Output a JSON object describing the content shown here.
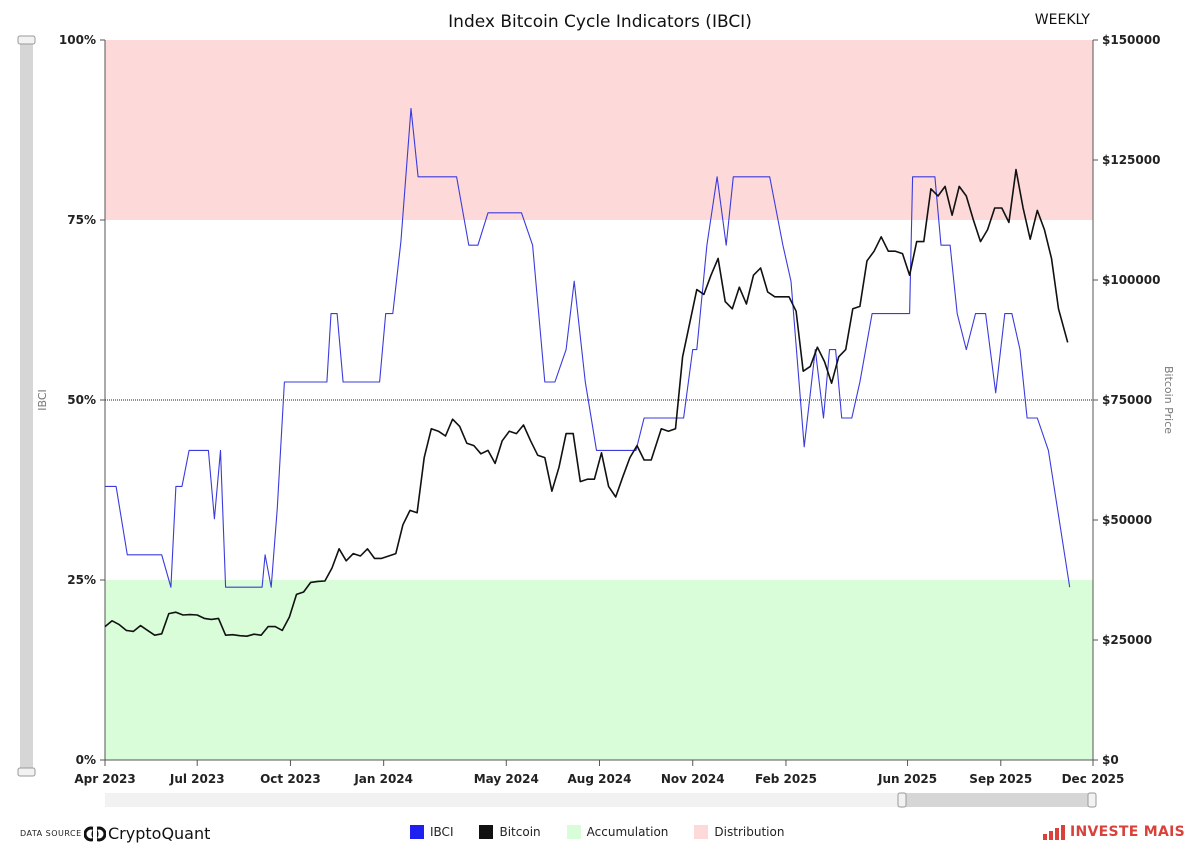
{
  "chart_data": {
    "type": "line",
    "title": "Index Bitcoin Cycle Indicators (IBCI)",
    "frequency_label": "WEEKLY",
    "y_left_label": "IBCI",
    "y_right_label": "Bitcoin Price",
    "y_left_ticks": [
      "0%",
      "25%",
      "50%",
      "75%",
      "100%"
    ],
    "y_left_range": [
      0,
      100
    ],
    "y_right_ticks": [
      "$0",
      "$25000",
      "$50000",
      "$75000",
      "$100000",
      "$125000",
      "$150000"
    ],
    "y_right_range": [
      0,
      150000
    ],
    "x_range": [
      "2023-04-01",
      "2025-12-01"
    ],
    "x_ticks": [
      {
        "date": "2023-04-01",
        "label": "Apr 2023"
      },
      {
        "date": "2023-07-01",
        "label": "Jul 2023"
      },
      {
        "date": "2023-10-01",
        "label": "Oct 2023"
      },
      {
        "date": "2024-01-01",
        "label": "Jan 2024"
      },
      {
        "date": "2024-05-01",
        "label": "May 2024"
      },
      {
        "date": "2024-08-01",
        "label": "Aug 2024"
      },
      {
        "date": "2024-11-01",
        "label": "Nov 2024"
      },
      {
        "date": "2025-02-01",
        "label": "Feb 2025"
      },
      {
        "date": "2025-06-01",
        "label": "Jun 2025"
      },
      {
        "date": "2025-09-01",
        "label": "Sep 2025"
      },
      {
        "date": "2025-12-01",
        "label": "Dec 2025"
      }
    ],
    "zones": [
      {
        "name": "Distribution",
        "from": 75,
        "to": 100,
        "color": "#fdd9d9"
      },
      {
        "name": "Accumulation",
        "from": 0,
        "to": 25,
        "color": "#d9fcd9"
      }
    ],
    "midline": 50,
    "series": [
      {
        "name": "IBCI",
        "color": "#3b3bdd",
        "axis": "left",
        "points": [
          [
            "2023-04-01",
            38
          ],
          [
            "2023-04-12",
            38
          ],
          [
            "2023-04-23",
            28.5
          ],
          [
            "2023-05-06",
            28.5
          ],
          [
            "2023-05-27",
            28.5
          ],
          [
            "2023-06-05",
            24
          ],
          [
            "2023-06-10",
            38
          ],
          [
            "2023-06-16",
            38
          ],
          [
            "2023-06-23",
            43
          ],
          [
            "2023-07-02",
            43
          ],
          [
            "2023-07-12",
            43
          ],
          [
            "2023-07-18",
            33.5
          ],
          [
            "2023-07-24",
            43
          ],
          [
            "2023-07-29",
            24
          ],
          [
            "2023-08-05",
            24
          ],
          [
            "2023-08-20",
            24
          ],
          [
            "2023-09-03",
            24
          ],
          [
            "2023-09-06",
            28.5
          ],
          [
            "2023-09-12",
            24
          ],
          [
            "2023-09-18",
            35
          ],
          [
            "2023-09-25",
            52.5
          ],
          [
            "2023-10-01",
            52.5
          ],
          [
            "2023-10-20",
            52.5
          ],
          [
            "2023-11-06",
            52.5
          ],
          [
            "2023-11-10",
            62
          ],
          [
            "2023-11-16",
            62
          ],
          [
            "2023-11-22",
            52.5
          ],
          [
            "2023-12-10",
            52.5
          ],
          [
            "2023-12-28",
            52.5
          ],
          [
            "2024-01-03",
            62
          ],
          [
            "2024-01-10",
            62
          ],
          [
            "2024-01-18",
            72
          ],
          [
            "2024-01-28",
            90.5
          ],
          [
            "2024-02-04",
            81
          ],
          [
            "2024-02-20",
            81
          ],
          [
            "2024-03-13",
            81
          ],
          [
            "2024-03-25",
            71.5
          ],
          [
            "2024-04-03",
            71.5
          ],
          [
            "2024-04-13",
            76
          ],
          [
            "2024-05-04",
            76
          ],
          [
            "2024-05-16",
            76
          ],
          [
            "2024-05-27",
            71.5
          ],
          [
            "2024-06-08",
            52.5
          ],
          [
            "2024-06-18",
            52.5
          ],
          [
            "2024-06-29",
            57
          ],
          [
            "2024-07-07",
            66.5
          ],
          [
            "2024-07-18",
            52.5
          ],
          [
            "2024-07-29",
            43
          ],
          [
            "2024-08-12",
            43
          ],
          [
            "2024-08-24",
            43
          ],
          [
            "2024-09-06",
            43
          ],
          [
            "2024-09-14",
            47.5
          ],
          [
            "2024-10-06",
            47.5
          ],
          [
            "2024-10-23",
            47.5
          ],
          [
            "2024-11-01",
            57
          ],
          [
            "2024-11-05",
            57
          ],
          [
            "2024-11-15",
            71.5
          ],
          [
            "2024-11-25",
            81
          ],
          [
            "2024-12-04",
            71.5
          ],
          [
            "2024-12-11",
            81
          ],
          [
            "2024-12-25",
            81
          ],
          [
            "2025-01-16",
            81
          ],
          [
            "2025-01-29",
            71.5
          ],
          [
            "2025-02-06",
            66.5
          ],
          [
            "2025-02-19",
            43.5
          ],
          [
            "2025-03-02",
            57
          ],
          [
            "2025-03-10",
            47.5
          ],
          [
            "2025-03-16",
            57
          ],
          [
            "2025-03-22",
            57
          ],
          [
            "2025-03-28",
            47.5
          ],
          [
            "2025-04-07",
            47.5
          ],
          [
            "2025-04-15",
            52.5
          ],
          [
            "2025-04-27",
            62
          ],
          [
            "2025-05-06",
            62
          ],
          [
            "2025-05-27",
            62
          ],
          [
            "2025-06-03",
            62
          ],
          [
            "2025-06-06",
            81
          ],
          [
            "2025-06-15",
            81
          ],
          [
            "2025-06-28",
            81
          ],
          [
            "2025-07-04",
            71.5
          ],
          [
            "2025-07-13",
            71.5
          ],
          [
            "2025-07-20",
            62
          ],
          [
            "2025-07-29",
            57
          ],
          [
            "2025-08-07",
            62
          ],
          [
            "2025-08-17",
            62
          ],
          [
            "2025-08-27",
            51
          ],
          [
            "2025-09-05",
            62
          ],
          [
            "2025-09-12",
            62
          ],
          [
            "2025-09-20",
            57
          ],
          [
            "2025-09-27",
            47.5
          ],
          [
            "2025-10-07",
            47.5
          ],
          [
            "2025-10-18",
            43
          ],
          [
            "2025-11-08",
            24
          ]
        ]
      },
      {
        "name": "Bitcoin",
        "color": "#111111",
        "axis": "right",
        "points": [
          [
            "2023-04-01",
            27800
          ],
          [
            "2023-04-08",
            29000
          ],
          [
            "2023-04-15",
            28200
          ],
          [
            "2023-04-22",
            27000
          ],
          [
            "2023-04-29",
            26800
          ],
          [
            "2023-05-06",
            28000
          ],
          [
            "2023-05-13",
            27000
          ],
          [
            "2023-05-20",
            26000
          ],
          [
            "2023-05-27",
            26300
          ],
          [
            "2023-06-03",
            30500
          ],
          [
            "2023-06-10",
            30800
          ],
          [
            "2023-06-17",
            30200
          ],
          [
            "2023-06-24",
            30300
          ],
          [
            "2023-07-01",
            30200
          ],
          [
            "2023-07-08",
            29500
          ],
          [
            "2023-07-15",
            29300
          ],
          [
            "2023-07-22",
            29500
          ],
          [
            "2023-07-29",
            26000
          ],
          [
            "2023-08-05",
            26100
          ],
          [
            "2023-08-12",
            25900
          ],
          [
            "2023-08-19",
            25800
          ],
          [
            "2023-08-26",
            26200
          ],
          [
            "2023-09-02",
            26000
          ],
          [
            "2023-09-09",
            27800
          ],
          [
            "2023-09-16",
            27800
          ],
          [
            "2023-09-23",
            27000
          ],
          [
            "2023-09-30",
            29800
          ],
          [
            "2023-10-07",
            34500
          ],
          [
            "2023-10-14",
            35000
          ],
          [
            "2023-10-21",
            37000
          ],
          [
            "2023-10-28",
            37200
          ],
          [
            "2023-11-04",
            37300
          ],
          [
            "2023-11-11",
            40000
          ],
          [
            "2023-11-18",
            44000
          ],
          [
            "2023-11-25",
            41500
          ],
          [
            "2023-12-02",
            43000
          ],
          [
            "2023-12-09",
            42500
          ],
          [
            "2023-12-16",
            44000
          ],
          [
            "2023-12-23",
            42000
          ],
          [
            "2023-12-30",
            42000
          ],
          [
            "2024-01-06",
            42500
          ],
          [
            "2024-01-13",
            43000
          ],
          [
            "2024-01-20",
            49000
          ],
          [
            "2024-01-27",
            52000
          ],
          [
            "2024-02-03",
            51500
          ],
          [
            "2024-02-10",
            63000
          ],
          [
            "2024-02-17",
            69000
          ],
          [
            "2024-02-24",
            68500
          ],
          [
            "2024-03-02",
            67500
          ],
          [
            "2024-03-09",
            71000
          ],
          [
            "2024-03-16",
            69500
          ],
          [
            "2024-03-23",
            66000
          ],
          [
            "2024-03-30",
            65500
          ],
          [
            "2024-04-06",
            63800
          ],
          [
            "2024-04-13",
            64500
          ],
          [
            "2024-04-20",
            61800
          ],
          [
            "2024-04-27",
            66500
          ],
          [
            "2024-05-04",
            68500
          ],
          [
            "2024-05-11",
            68000
          ],
          [
            "2024-05-18",
            69800
          ],
          [
            "2024-05-25",
            66500
          ],
          [
            "2024-06-01",
            63500
          ],
          [
            "2024-06-08",
            63000
          ],
          [
            "2024-06-15",
            56000
          ],
          [
            "2024-06-22",
            61000
          ],
          [
            "2024-06-29",
            68000
          ],
          [
            "2024-07-06",
            68000
          ],
          [
            "2024-07-13",
            58000
          ],
          [
            "2024-07-20",
            58500
          ],
          [
            "2024-07-27",
            58500
          ],
          [
            "2024-08-03",
            64000
          ],
          [
            "2024-08-10",
            57000
          ],
          [
            "2024-08-17",
            54800
          ],
          [
            "2024-08-24",
            59000
          ],
          [
            "2024-08-31",
            63000
          ],
          [
            "2024-09-07",
            65500
          ],
          [
            "2024-09-14",
            62500
          ],
          [
            "2024-09-21",
            62500
          ],
          [
            "2024-10-01",
            69000
          ],
          [
            "2024-10-08",
            68500
          ],
          [
            "2024-10-15",
            69000
          ],
          [
            "2024-10-22",
            84000
          ],
          [
            "2024-10-29",
            91000
          ],
          [
            "2024-11-05",
            98000
          ],
          [
            "2024-11-12",
            97000
          ],
          [
            "2024-11-19",
            101000
          ],
          [
            "2024-11-26",
            104500
          ],
          [
            "2024-12-03",
            95500
          ],
          [
            "2024-12-10",
            94000
          ],
          [
            "2024-12-17",
            98500
          ],
          [
            "2024-12-24",
            95000
          ],
          [
            "2024-12-31",
            101000
          ],
          [
            "2025-01-07",
            102500
          ],
          [
            "2025-01-14",
            97500
          ],
          [
            "2025-01-21",
            96500
          ],
          [
            "2025-01-28",
            96500
          ],
          [
            "2025-02-04",
            96500
          ],
          [
            "2025-02-11",
            93500
          ],
          [
            "2025-02-18",
            81000
          ],
          [
            "2025-02-25",
            82000
          ],
          [
            "2025-03-04",
            86000
          ],
          [
            "2025-03-11",
            83000
          ],
          [
            "2025-03-18",
            78500
          ],
          [
            "2025-03-25",
            84000
          ],
          [
            "2025-04-01",
            85500
          ],
          [
            "2025-04-08",
            94000
          ],
          [
            "2025-04-15",
            94500
          ],
          [
            "2025-04-22",
            104000
          ],
          [
            "2025-04-29",
            106000
          ],
          [
            "2025-05-06",
            109000
          ],
          [
            "2025-05-13",
            106000
          ],
          [
            "2025-05-20",
            106000
          ],
          [
            "2025-05-27",
            105500
          ],
          [
            "2025-06-03",
            101000
          ],
          [
            "2025-06-10",
            108000
          ],
          [
            "2025-06-17",
            108000
          ],
          [
            "2025-06-24",
            119000
          ],
          [
            "2025-07-01",
            117500
          ],
          [
            "2025-07-08",
            119500
          ],
          [
            "2025-07-15",
            113500
          ],
          [
            "2025-07-22",
            119500
          ],
          [
            "2025-07-29",
            117500
          ],
          [
            "2025-08-05",
            112500
          ],
          [
            "2025-08-12",
            108000
          ],
          [
            "2025-08-19",
            110500
          ],
          [
            "2025-08-26",
            115000
          ],
          [
            "2025-09-02",
            115000
          ],
          [
            "2025-09-09",
            112000
          ],
          [
            "2025-09-16",
            123000
          ],
          [
            "2025-09-23",
            115000
          ],
          [
            "2025-09-30",
            108500
          ],
          [
            "2025-10-07",
            114500
          ],
          [
            "2025-10-14",
            110500
          ],
          [
            "2025-10-21",
            104500
          ],
          [
            "2025-10-28",
            94000
          ],
          [
            "2025-11-06",
            87000
          ]
        ]
      }
    ],
    "legend": [
      {
        "label": "IBCI",
        "color": "#1f1ff0"
      },
      {
        "label": "Bitcoin",
        "color": "#111111"
      },
      {
        "label": "Accumulation",
        "color": "#d9fcd9"
      },
      {
        "label": "Distribution",
        "color": "#fdd9d9"
      }
    ]
  },
  "footer": {
    "data_source_label": "DATA SOURCE",
    "provider_name": "CryptoQuant",
    "brand_name": "INVESTE MAIS",
    "brand_color": "#d9413a"
  }
}
